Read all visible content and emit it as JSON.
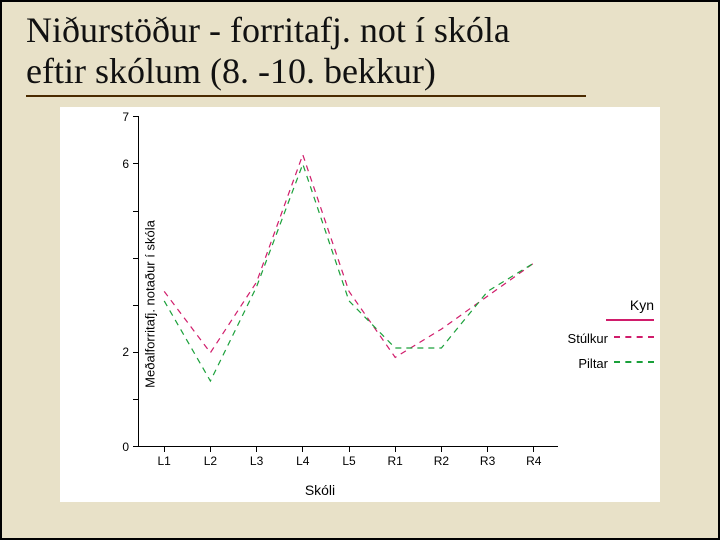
{
  "slide": {
    "title_line1": "Niðurstöður - forritafj. not í skóla",
    "title_line2": "eftir skólum (8. -10. bekkur)",
    "background_color": "#e8e1c8",
    "underline_color": "#4a2a00"
  },
  "chart": {
    "type": "line",
    "ylabel": "Meðalforritafj. notaður í skóla",
    "xlabel": "Skóli",
    "label_fontsize": 13,
    "background_color": "#ffffff",
    "axis_color": "#000000",
    "ylim": [
      0,
      7
    ],
    "yticks": [
      0,
      1,
      2,
      3,
      4,
      5,
      6,
      7
    ],
    "ytick_labels": [
      "0",
      "",
      "2",
      "",
      "",
      "",
      "6",
      "7"
    ],
    "categories": [
      "L1",
      "L2",
      "L3",
      "L4",
      "L5",
      "R1",
      "R2",
      "R3",
      "R4"
    ],
    "line_dash": "6,5",
    "line_width": 1.2,
    "series": [
      {
        "name": "Stúlkur",
        "color": "#d01c6b",
        "values": [
          3.3,
          2.0,
          3.5,
          6.2,
          3.3,
          1.9,
          2.5,
          3.2,
          3.9
        ]
      },
      {
        "name": "Piltar",
        "color": "#1aa03a",
        "values": [
          3.1,
          1.4,
          3.4,
          6.0,
          3.1,
          2.1,
          2.1,
          3.3,
          3.9
        ]
      }
    ],
    "legend": {
      "title": "Kyn",
      "title_underline_color": "#d01c6b",
      "position": "right"
    }
  }
}
